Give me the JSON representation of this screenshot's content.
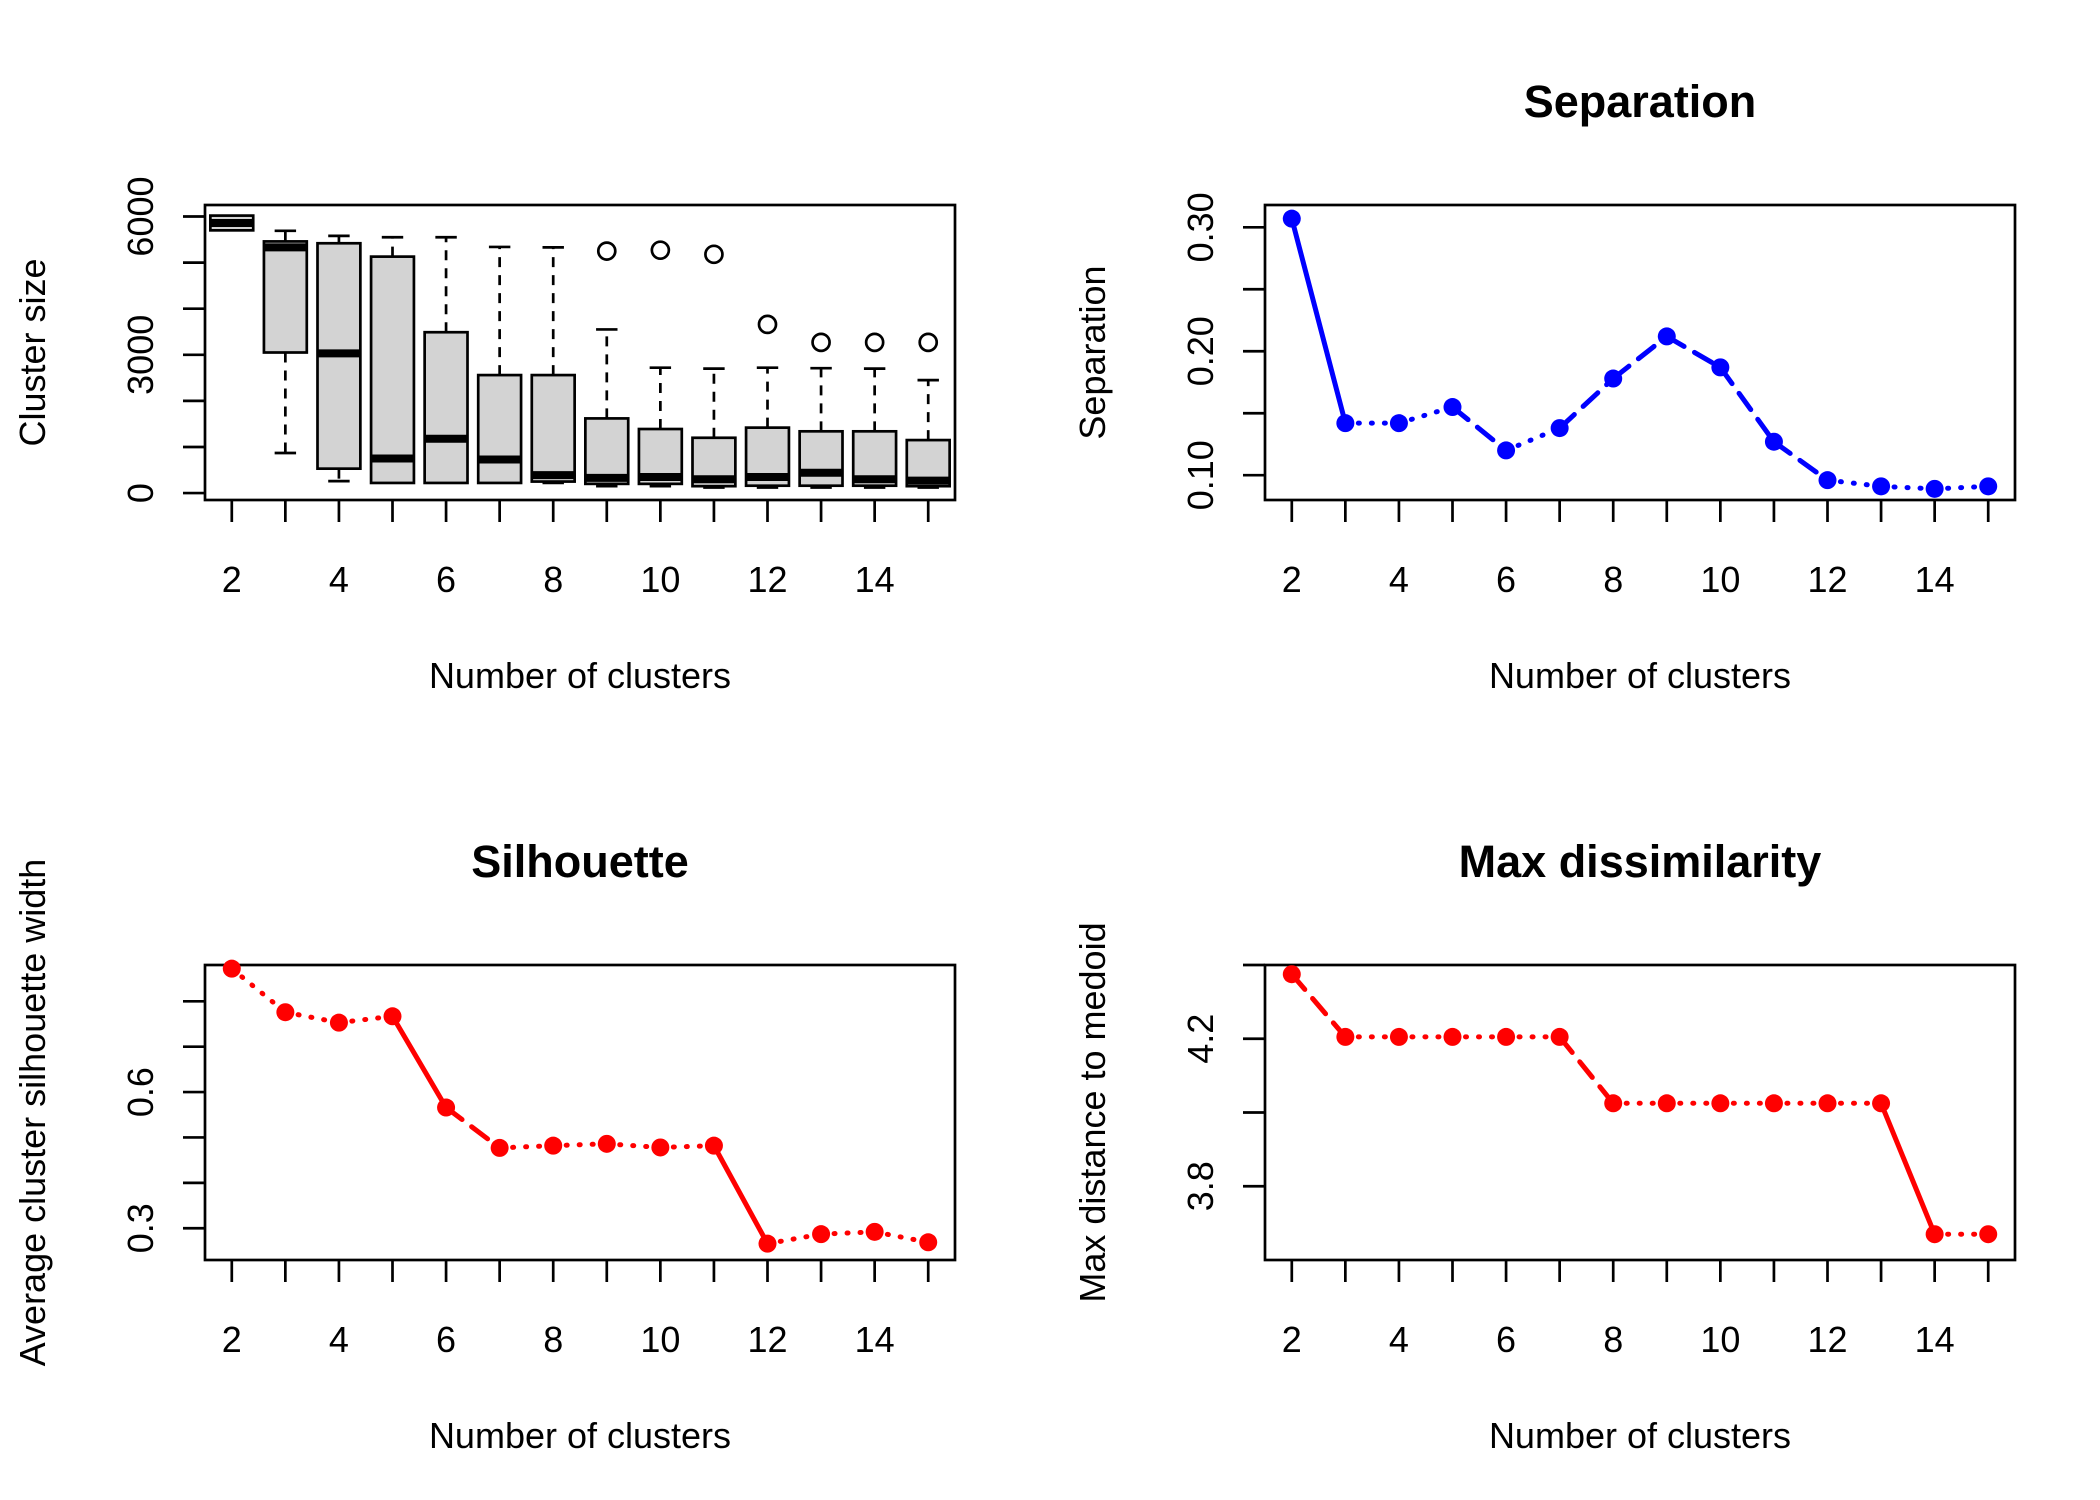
{
  "colors": {
    "box_fill": "#d3d3d3",
    "blue": "#0000ff",
    "red": "#ff0000"
  },
  "chart_data": [
    {
      "type": "box",
      "title": "",
      "xlabel": "Number of clusters",
      "ylabel": "Cluster size",
      "xlim": [
        1.5,
        15.5
      ],
      "ylim": [
        -150,
        6250
      ],
      "xticks": [
        2,
        4,
        6,
        8,
        10,
        12,
        14
      ],
      "xtick_labels": [
        "2",
        "4",
        "6",
        "8",
        "10",
        "12",
        "14"
      ],
      "yticks": [
        0,
        1000,
        2000,
        3000,
        4000,
        5000,
        6000
      ],
      "ytick_labels": [
        "0",
        "",
        "",
        "3000",
        "",
        "",
        "6000"
      ],
      "boxes": [
        {
          "k": 2,
          "min": 5700,
          "q1": 5700,
          "median": 5860,
          "q3": 6020,
          "max": 6020,
          "outliers": []
        },
        {
          "k": 3,
          "min": 870,
          "q1": 3050,
          "median": 5330,
          "q3": 5460,
          "max": 5690,
          "outliers": []
        },
        {
          "k": 4,
          "min": 260,
          "q1": 530,
          "median": 3030,
          "q3": 5420,
          "max": 5580,
          "outliers": []
        },
        {
          "k": 5,
          "min": 220,
          "q1": 220,
          "median": 750,
          "q3": 5130,
          "max": 5550,
          "outliers": []
        },
        {
          "k": 6,
          "min": 220,
          "q1": 220,
          "median": 1180,
          "q3": 3490,
          "max": 5550,
          "outliers": []
        },
        {
          "k": 7,
          "min": 220,
          "q1": 220,
          "median": 730,
          "q3": 2560,
          "max": 5340,
          "outliers": []
        },
        {
          "k": 8,
          "min": 220,
          "q1": 250,
          "median": 390,
          "q3": 2560,
          "max": 5330,
          "outliers": []
        },
        {
          "k": 9,
          "min": 150,
          "q1": 200,
          "median": 330,
          "q3": 1620,
          "max": 3550,
          "outliers": [
            5250
          ]
        },
        {
          "k": 10,
          "min": 150,
          "q1": 200,
          "median": 350,
          "q3": 1390,
          "max": 2720,
          "outliers": [
            5270
          ]
        },
        {
          "k": 11,
          "min": 120,
          "q1": 150,
          "median": 300,
          "q3": 1200,
          "max": 2700,
          "outliers": [
            5180
          ]
        },
        {
          "k": 12,
          "min": 120,
          "q1": 160,
          "median": 350,
          "q3": 1420,
          "max": 2720,
          "outliers": [
            3660
          ]
        },
        {
          "k": 13,
          "min": 120,
          "q1": 160,
          "median": 440,
          "q3": 1340,
          "max": 2710,
          "outliers": [
            3270
          ]
        },
        {
          "k": 14,
          "min": 120,
          "q1": 160,
          "median": 300,
          "q3": 1340,
          "max": 2700,
          "outliers": [
            3270
          ]
        },
        {
          "k": 15,
          "min": 120,
          "q1": 150,
          "median": 270,
          "q3": 1150,
          "max": 2450,
          "outliers": [
            3270
          ]
        }
      ]
    },
    {
      "type": "line",
      "title": "Separation",
      "xlabel": "Number of clusters",
      "ylabel": "Separation",
      "color": "#0000ff",
      "xlim": [
        1.5,
        15.5
      ],
      "ylim": [
        0.08,
        0.318
      ],
      "xticks": [
        2,
        4,
        6,
        8,
        10,
        12,
        14
      ],
      "xtick_labels": [
        "2",
        "4",
        "6",
        "8",
        "10",
        "12",
        "14"
      ],
      "yticks": [
        0.1,
        0.15,
        0.2,
        0.25,
        0.3
      ],
      "ytick_labels": [
        "0.10",
        "",
        "0.20",
        "",
        "0.30"
      ],
      "x": [
        2,
        3,
        4,
        5,
        6,
        7,
        8,
        9,
        10,
        11,
        12,
        13,
        14,
        15
      ],
      "y": [
        0.307,
        0.142,
        0.142,
        0.155,
        0.12,
        0.138,
        0.178,
        0.212,
        0.187,
        0.127,
        0.096,
        0.091,
        0.089,
        0.091
      ]
    },
    {
      "type": "line",
      "title": "Silhouette",
      "xlabel": "Number of clusters",
      "ylabel": "Average cluster silhouette width",
      "color": "#ff0000",
      "xlim": [
        1.5,
        15.5
      ],
      "ylim": [
        0.23,
        0.88
      ],
      "xticks": [
        2,
        4,
        6,
        8,
        10,
        12,
        14
      ],
      "xtick_labels": [
        "2",
        "4",
        "6",
        "8",
        "10",
        "12",
        "14"
      ],
      "yticks": [
        0.3,
        0.4,
        0.5,
        0.6,
        0.7,
        0.8
      ],
      "ytick_labels": [
        "0.3",
        "",
        "",
        "0.6",
        "",
        ""
      ],
      "x": [
        2,
        3,
        4,
        5,
        6,
        7,
        8,
        9,
        10,
        11,
        12,
        13,
        14,
        15
      ],
      "y": [
        0.872,
        0.776,
        0.753,
        0.767,
        0.566,
        0.477,
        0.482,
        0.486,
        0.478,
        0.482,
        0.266,
        0.287,
        0.292,
        0.269
      ]
    },
    {
      "type": "line",
      "title": "Max dissimilarity",
      "xlabel": "Number of clusters",
      "ylabel": "Max distance to medoid",
      "color": "#ff0000",
      "xlim": [
        1.5,
        15.5
      ],
      "ylim": [
        3.6,
        4.4
      ],
      "xticks": [
        2,
        4,
        6,
        8,
        10,
        12,
        14
      ],
      "xtick_labels": [
        "2",
        "4",
        "6",
        "8",
        "10",
        "12",
        "14"
      ],
      "yticks": [
        3.8,
        4.0,
        4.2,
        4.4
      ],
      "ytick_labels": [
        "3.8",
        "",
        "4.2",
        ""
      ],
      "x": [
        2,
        3,
        4,
        5,
        6,
        7,
        8,
        9,
        10,
        11,
        12,
        13,
        14,
        15
      ],
      "y": [
        4.375,
        4.205,
        4.205,
        4.205,
        4.205,
        4.205,
        4.025,
        4.025,
        4.025,
        4.025,
        4.025,
        4.025,
        3.67,
        3.67
      ]
    }
  ]
}
